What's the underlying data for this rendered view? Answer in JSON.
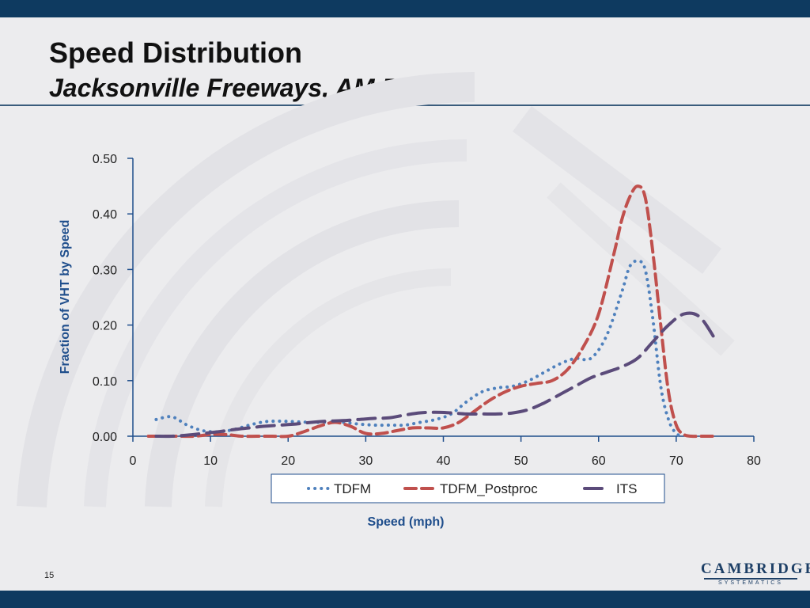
{
  "slide": {
    "title": "Speed Distribution",
    "subtitle": "Jacksonville Freeways, AM Peak",
    "page_number": "15",
    "logo": {
      "name": "CAMBRIDGE",
      "tagline": "SYSTEMATICS"
    }
  },
  "colors": {
    "frame": "#0e3a60",
    "axis": "#1f4e8c",
    "tdfm": "#4f81bd",
    "tdfm_postproc": "#c0504d",
    "its": "#5b4b7a"
  },
  "chart_data": {
    "type": "line",
    "xlabel": "Speed (mph)",
    "ylabel": "Fraction of VHT by Speed",
    "xlim": [
      0,
      80
    ],
    "ylim": [
      0,
      0.5
    ],
    "xticks": [
      0,
      10,
      20,
      30,
      40,
      50,
      60,
      70,
      80
    ],
    "xtick_labels": [
      "0",
      "10",
      "20",
      "30",
      "40",
      "50",
      "60",
      "70",
      "80"
    ],
    "yticks": [
      0,
      0.1,
      0.2,
      0.3,
      0.4,
      0.5
    ],
    "ytick_labels": [
      "0.00",
      "0.10",
      "0.20",
      "0.30",
      "0.40",
      "0.50"
    ],
    "grid": false,
    "legend_position": "bottom",
    "series": [
      {
        "name": "TDFM",
        "style": "dotted",
        "x": [
          3,
          5,
          7,
          9,
          11,
          13,
          15,
          17,
          19,
          21,
          23,
          25,
          27,
          29,
          31,
          33,
          35,
          37,
          39,
          41,
          43,
          45,
          47,
          49,
          51,
          53,
          55,
          57,
          59,
          61,
          63,
          64,
          65,
          66,
          67,
          68,
          69,
          70,
          71
        ],
        "values": [
          0.03,
          0.035,
          0.02,
          0.01,
          0.008,
          0.012,
          0.02,
          0.026,
          0.027,
          0.026,
          0.025,
          0.025,
          0.025,
          0.022,
          0.02,
          0.02,
          0.02,
          0.025,
          0.03,
          0.04,
          0.062,
          0.08,
          0.087,
          0.09,
          0.1,
          0.115,
          0.13,
          0.14,
          0.14,
          0.18,
          0.26,
          0.305,
          0.315,
          0.3,
          0.21,
          0.09,
          0.03,
          0.005,
          0.0
        ]
      },
      {
        "name": "TDFM_Postproc",
        "style": "dashed",
        "x": [
          2,
          4,
          6,
          8,
          10,
          12,
          14,
          16,
          18,
          20,
          22,
          24,
          26,
          28,
          30,
          32,
          34,
          36,
          38,
          40,
          42,
          44,
          46,
          48,
          50,
          52,
          54,
          56,
          58,
          60,
          62,
          63,
          64,
          65,
          66,
          67,
          68,
          69,
          70,
          71,
          72,
          73,
          75
        ],
        "values": [
          0.0,
          0.0,
          0.0,
          0.0,
          0.003,
          0.003,
          0.0,
          0.0,
          0.0,
          0.0,
          0.008,
          0.018,
          0.025,
          0.018,
          0.005,
          0.005,
          0.01,
          0.015,
          0.015,
          0.015,
          0.025,
          0.045,
          0.065,
          0.08,
          0.09,
          0.095,
          0.1,
          0.12,
          0.16,
          0.22,
          0.33,
          0.39,
          0.43,
          0.45,
          0.43,
          0.33,
          0.2,
          0.08,
          0.02,
          0.003,
          0.0,
          0.0,
          0.0
        ]
      },
      {
        "name": "ITS",
        "style": "long-dash",
        "x": [
          3,
          5,
          7,
          9,
          11,
          13,
          15,
          17,
          19,
          21,
          23,
          25,
          27,
          29,
          31,
          33,
          35,
          37,
          39,
          41,
          43,
          45,
          47,
          49,
          51,
          53,
          55,
          57,
          59,
          61,
          63,
          65,
          67,
          69,
          71,
          73,
          75
        ],
        "values": [
          0.0,
          0.0,
          0.002,
          0.005,
          0.008,
          0.012,
          0.015,
          0.018,
          0.02,
          0.022,
          0.025,
          0.027,
          0.028,
          0.03,
          0.032,
          0.033,
          0.038,
          0.042,
          0.043,
          0.042,
          0.04,
          0.04,
          0.04,
          0.042,
          0.048,
          0.06,
          0.075,
          0.09,
          0.105,
          0.115,
          0.125,
          0.14,
          0.17,
          0.2,
          0.22,
          0.215,
          0.175
        ]
      }
    ]
  }
}
